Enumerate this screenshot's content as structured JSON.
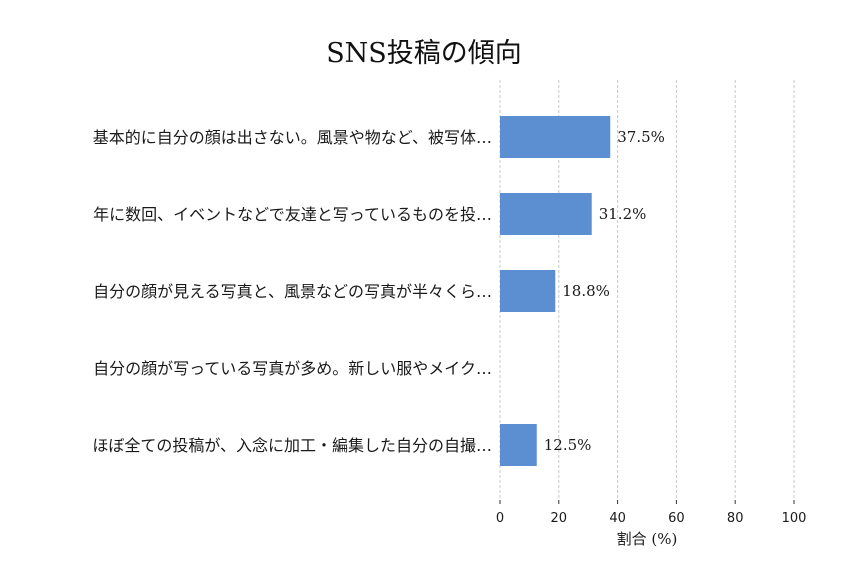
{
  "chart_data": {
    "type": "bar",
    "orientation": "horizontal",
    "title": "SNS投稿の傾向",
    "xlabel": "割合 (%)",
    "ylabel": "",
    "xlim": [
      0,
      100
    ],
    "xticks": [
      0,
      20,
      40,
      60,
      80,
      100
    ],
    "grid": true,
    "categories": [
      "基本的に自分の顔は出さない。風景や物など、被写体…",
      "年に数回、イベントなどで友達と写っているものを投…",
      "自分の顔が見える写真と、風景などの写真が半々くら…",
      "自分の顔が写っている写真が多め。新しい服やメイク…",
      "ほぼ全ての投稿が、入念に加工・編集した自分の自撮…"
    ],
    "values": [
      37.5,
      31.2,
      18.8,
      0,
      12.5
    ],
    "value_labels": [
      "37.5%",
      "31.2%",
      "18.8%",
      "",
      "12.5%"
    ],
    "bar_color": "#5b8fd1"
  }
}
